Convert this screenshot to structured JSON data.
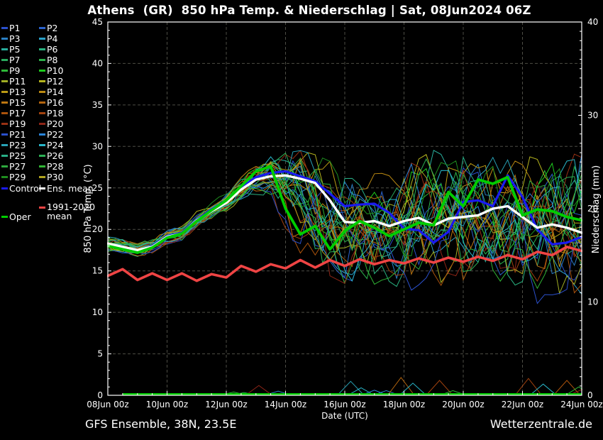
{
  "footer": {
    "left": "GFS Ensemble, 38N, 23.5E",
    "right": "Wetterzentrale.de"
  },
  "legend": {
    "control_label": "Control",
    "ens_mean_label": "Ens. mean",
    "climate_lines": [
      "1991-2020",
      "mean"
    ],
    "oper_label": "Oper"
  },
  "chart_data": {
    "type": "line",
    "title": "Athens  (GR)  850 hPa Temp. & Niederschlag | Sat, 08Jun2024 06Z",
    "x_axis": {
      "label": "Date (UTC)",
      "tick_labels": [
        "08Jun 00z",
        "10Jun 00z",
        "12Jun 00z",
        "14Jun 00z",
        "16Jun 00z",
        "18Jun 00z",
        "20Jun 00z",
        "22Jun 00z",
        "24Jun 00z"
      ],
      "tick_positions_days": [
        0,
        2,
        4,
        6,
        8,
        10,
        12,
        14,
        16
      ],
      "minor_step_days": 0.5,
      "range_days": [
        0,
        16
      ]
    },
    "y_left": {
      "label": "850 hPa Temp. (°C)",
      "min": 0,
      "max": 45,
      "major_step": 5,
      "minor_step": 1,
      "tick_labels": [
        "0",
        "5",
        "10",
        "15",
        "20",
        "25",
        "30",
        "35",
        "40",
        "45"
      ]
    },
    "y_right": {
      "label": "Niederschlag (mm)",
      "min": 0,
      "max": 40,
      "major_step": 10,
      "minor_step": 1,
      "tick_labels": [
        "0",
        "10",
        "20",
        "30",
        "40"
      ]
    },
    "grid": {
      "on": true,
      "color": "#4d4d45",
      "x_every_days": 2,
      "y_every_degc": 5
    },
    "time_step_days": 0.5,
    "series": [
      {
        "key": "climate_mean",
        "name": "1991-2020 mean",
        "color": "#ef4444",
        "width": 3.6,
        "axis": "left",
        "values": [
          14.4,
          15.2,
          13.9,
          14.7,
          13.9,
          14.7,
          13.8,
          14.6,
          14.2,
          15.6,
          14.9,
          15.8,
          15.3,
          16.3,
          15.4,
          16.3,
          15.6,
          16.4,
          15.8,
          16.3,
          15.9,
          16.5,
          16.0,
          16.6,
          16.1,
          16.7,
          16.2,
          16.9,
          16.4,
          17.3,
          16.9,
          17.9,
          17.4
        ]
      },
      {
        "key": "control",
        "name": "Control",
        "color": "#1a1af0",
        "width": 3.2,
        "axis": "left",
        "values": [
          18.2,
          17.8,
          17.4,
          18.0,
          19.2,
          19.6,
          21.2,
          22.4,
          23.4,
          25.0,
          26.3,
          26.8,
          27.0,
          26.4,
          25.8,
          24.3,
          22.8,
          23.0,
          23.1,
          22.0,
          20.1,
          19.9,
          18.4,
          19.7,
          23.3,
          23.5,
          22.8,
          26.5,
          23.9,
          20.0,
          18.2,
          18.4,
          19.1
        ]
      },
      {
        "key": "ens_mean",
        "name": "Ens. mean",
        "color": "#ffffff",
        "width": 3.4,
        "axis": "left",
        "values": [
          18.3,
          17.9,
          17.5,
          17.9,
          19.1,
          19.5,
          21.1,
          22.2,
          23.2,
          24.8,
          26.0,
          26.4,
          26.5,
          26.1,
          25.6,
          23.5,
          20.9,
          20.8,
          21.0,
          20.4,
          21.0,
          21.4,
          20.5,
          21.3,
          21.5,
          21.7,
          22.5,
          22.8,
          21.5,
          20.2,
          20.6,
          20.2,
          19.6
        ]
      },
      {
        "key": "oper",
        "name": "Oper",
        "color": "#00cd00",
        "width": 3.8,
        "axis": "left",
        "values": [
          18.0,
          17.6,
          17.2,
          17.8,
          19.0,
          19.5,
          21.0,
          22.3,
          23.5,
          25.2,
          27.0,
          27.6,
          22.5,
          19.4,
          20.4,
          17.6,
          19.8,
          21.0,
          20.2,
          19.2,
          20.0,
          20.8,
          20.5,
          24.5,
          22.8,
          26.0,
          25.5,
          26.3,
          21.7,
          22.4,
          22.2,
          21.5,
          21.1
        ]
      }
    ],
    "members": [
      {
        "label": "P1",
        "color": "#2b50cc"
      },
      {
        "label": "P2",
        "color": "#2b62cc"
      },
      {
        "label": "P3",
        "color": "#2a7fc4"
      },
      {
        "label": "P4",
        "color": "#29a0c8"
      },
      {
        "label": "P5",
        "color": "#28ad9c"
      },
      {
        "label": "P6",
        "color": "#28b07e"
      },
      {
        "label": "P7",
        "color": "#2aaa5e"
      },
      {
        "label": "P8",
        "color": "#2cb14a"
      },
      {
        "label": "P9",
        "color": "#2eb838"
      },
      {
        "label": "P10",
        "color": "#1ecb1e"
      },
      {
        "label": "P11",
        "color": "#a0ae24"
      },
      {
        "label": "P12",
        "color": "#b5b41e"
      },
      {
        "label": "P13",
        "color": "#bb9a14"
      },
      {
        "label": "P14",
        "color": "#bc8a12"
      },
      {
        "label": "P15",
        "color": "#bd7610"
      },
      {
        "label": "P16",
        "color": "#b4650e"
      },
      {
        "label": "P17",
        "color": "#ab530c"
      },
      {
        "label": "P18",
        "color": "#a2420e"
      },
      {
        "label": "P19",
        "color": "#993114"
      },
      {
        "label": "P20",
        "color": "#8e2517"
      },
      {
        "label": "P21",
        "color": "#2b50cc"
      },
      {
        "label": "P22",
        "color": "#2a84d8"
      },
      {
        "label": "P23",
        "color": "#28a2b6"
      },
      {
        "label": "P24",
        "color": "#28b6c9"
      },
      {
        "label": "P25",
        "color": "#28ae86"
      },
      {
        "label": "P26",
        "color": "#2cb054"
      },
      {
        "label": "P27",
        "color": "#2ea83e"
      },
      {
        "label": "P28",
        "color": "#30b434"
      },
      {
        "label": "P29",
        "color": "#1e8c1e"
      },
      {
        "label": "P30",
        "color": "#b0a41e"
      }
    ],
    "member_envelope": {
      "step_days": 0.5,
      "min": [
        17.3,
        17.0,
        16.6,
        17.1,
        18.2,
        18.7,
        20.0,
        21.2,
        22.2,
        23.4,
        24.2,
        24.0,
        19.5,
        16.2,
        14.5,
        13.6,
        13.2,
        14.0,
        13.0,
        13.5,
        11.5,
        13.0,
        13.5,
        13.0,
        13.8,
        14.0,
        13.5,
        13.0,
        12.5,
        10.8,
        12.0,
        12.5,
        12.2
      ],
      "max": [
        19.2,
        18.8,
        18.4,
        18.9,
        20.0,
        20.7,
        22.2,
        23.4,
        24.5,
        26.3,
        28.0,
        28.8,
        29.2,
        29.5,
        29.0,
        28.2,
        27.5,
        28.0,
        27.0,
        26.5,
        27.5,
        28.5,
        30.0,
        31.0,
        29.5,
        28.5,
        29.0,
        29.5,
        28.5,
        29.0,
        29.8,
        29.5,
        29.5
      ]
    },
    "precip": {
      "oper_baseline": {
        "color": "#00cd00",
        "value_mm": 0,
        "t_start": 0.5,
        "t_end": 16
      },
      "spikes": [
        {
          "t": 4.25,
          "mm": 0.35,
          "color": "#2eb838"
        },
        {
          "t": 4.6,
          "mm": 0.3,
          "color": "#2cb14a"
        },
        {
          "t": 5.1,
          "mm": 1.05,
          "color": "#8e2517"
        },
        {
          "t": 5.75,
          "mm": 0.45,
          "color": "#2a7fc4"
        },
        {
          "t": 8.2,
          "mm": 1.5,
          "color": "#28a2b6"
        },
        {
          "t": 8.55,
          "mm": 0.8,
          "color": "#28b6c9"
        },
        {
          "t": 9.0,
          "mm": 0.55,
          "color": "#2a84d8"
        },
        {
          "t": 9.4,
          "mm": 0.5,
          "color": "#2a7fc4"
        },
        {
          "t": 9.9,
          "mm": 1.9,
          "color": "#b4650e"
        },
        {
          "t": 10.3,
          "mm": 1.3,
          "color": "#28b6c9"
        },
        {
          "t": 11.2,
          "mm": 1.6,
          "color": "#a2420e"
        },
        {
          "t": 11.65,
          "mm": 0.5,
          "color": "#2eb838"
        },
        {
          "t": 14.2,
          "mm": 1.8,
          "color": "#a2420e"
        },
        {
          "t": 14.7,
          "mm": 1.2,
          "color": "#28b6c9"
        },
        {
          "t": 15.5,
          "mm": 1.6,
          "color": "#ab530c"
        },
        {
          "t": 15.9,
          "mm": 0.9,
          "color": "#2eb838"
        },
        {
          "t": 16.0,
          "mm": 0.6,
          "color": "#8e2517"
        }
      ]
    }
  }
}
